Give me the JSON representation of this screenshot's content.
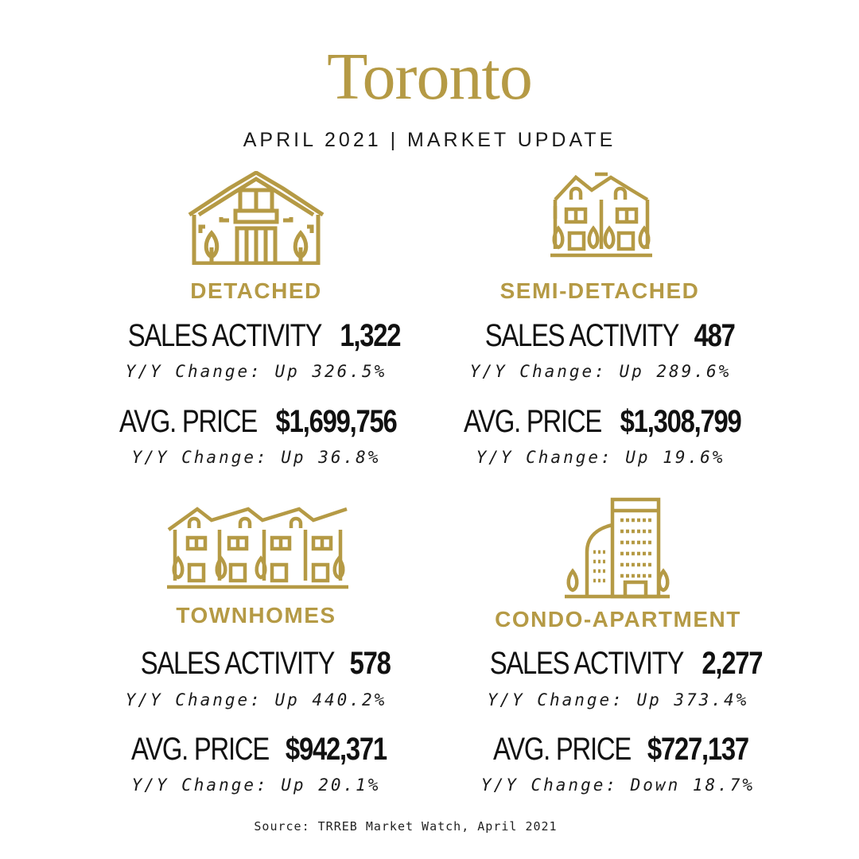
{
  "header": {
    "title": "Toronto",
    "subtitle": "APRIL 2021  |  MARKET UPDATE"
  },
  "colors": {
    "accent": "#b59a45",
    "text": "#111111",
    "background": "#ffffff"
  },
  "sections": [
    {
      "icon": "detached-house-icon",
      "category": "DETACHED",
      "sales_label": "SALES ACTIVITY",
      "sales_value": "1,322",
      "sales_change": "Y/Y Change: Up 326.5%",
      "price_label": "AVG. PRICE",
      "price_value": "$1,699,756",
      "price_change": "Y/Y Change: Up 36.8%"
    },
    {
      "icon": "semi-detached-house-icon",
      "category": "SEMI-DETACHED",
      "sales_label": "SALES ACTIVITY",
      "sales_value": "487",
      "sales_change": "Y/Y Change: Up 289.6%",
      "price_label": "AVG. PRICE",
      "price_value": "$1,308,799",
      "price_change": "Y/Y Change: Up 19.6%"
    },
    {
      "icon": "townhomes-icon",
      "category": "TOWNHOMES",
      "sales_label": "SALES ACTIVITY",
      "sales_value": "578",
      "sales_change": "Y/Y Change: Up 440.2%",
      "price_label": "AVG. PRICE",
      "price_value": "$942,371",
      "price_change": "Y/Y Change: Up 20.1%"
    },
    {
      "icon": "condo-apartment-icon",
      "category": "CONDO-APARTMENT",
      "sales_label": "SALES ACTIVITY",
      "sales_value": "2,277",
      "sales_change": "Y/Y Change: Up 373.4%",
      "price_label": "AVG. PRICE",
      "price_value": "$727,137",
      "price_change": "Y/Y Change: Down 18.7%"
    }
  ],
  "footer": {
    "source": "Source: TRREB Market Watch, April 2021"
  }
}
